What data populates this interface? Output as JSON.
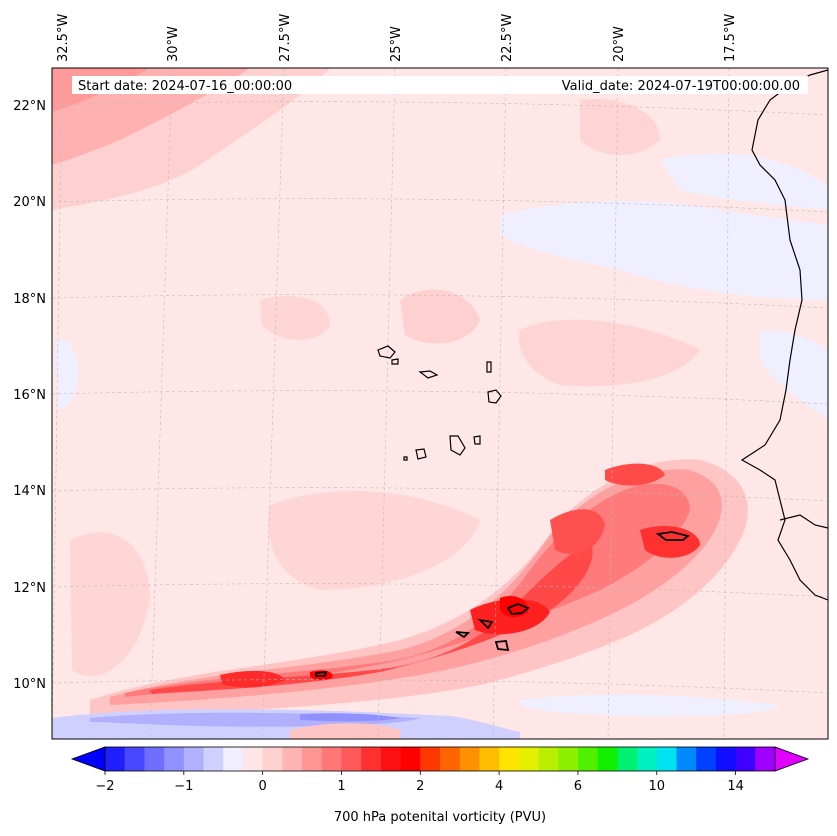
{
  "map": {
    "start_date": "Start date: 2024-07-16_00:00:00",
    "valid_date": "Valid_date: 2024-07-19T00:00:00.00",
    "lon_labels": [
      "32.5°W",
      "30°W",
      "27.5°W",
      "25°W",
      "22.5°W",
      "20°W",
      "17.5°W"
    ],
    "lat_labels": [
      "22°N",
      "20°N",
      "18°N",
      "16°N",
      "14°N",
      "12°N",
      "10°N"
    ]
  },
  "colorbar": {
    "label": "700 hPa potenital vorticity (PVU)",
    "tick_labels": [
      "−2",
      "−1",
      "0",
      "1",
      "2",
      "4",
      "6",
      "10",
      "14"
    ],
    "colors": [
      "#0000ff",
      "#2020ff",
      "#4848ff",
      "#6e6eff",
      "#9090ff",
      "#b0b0ff",
      "#d0d0ff",
      "#efefff",
      "#ffe6e6",
      "#ffd0d0",
      "#ffb4b4",
      "#ff9696",
      "#ff7878",
      "#ff5a5a",
      "#ff3030",
      "#ff1010",
      "#ff0000",
      "#ff3800",
      "#ff6400",
      "#ff9000",
      "#ffbc00",
      "#ffe400",
      "#e4f000",
      "#b8f000",
      "#8cf000",
      "#50f000",
      "#10f000",
      "#00f070",
      "#00f0c0",
      "#00e4f0",
      "#0088ff",
      "#0040ff",
      "#1010ff",
      "#4000ff",
      "#a000ff",
      "#e000ff"
    ]
  }
}
